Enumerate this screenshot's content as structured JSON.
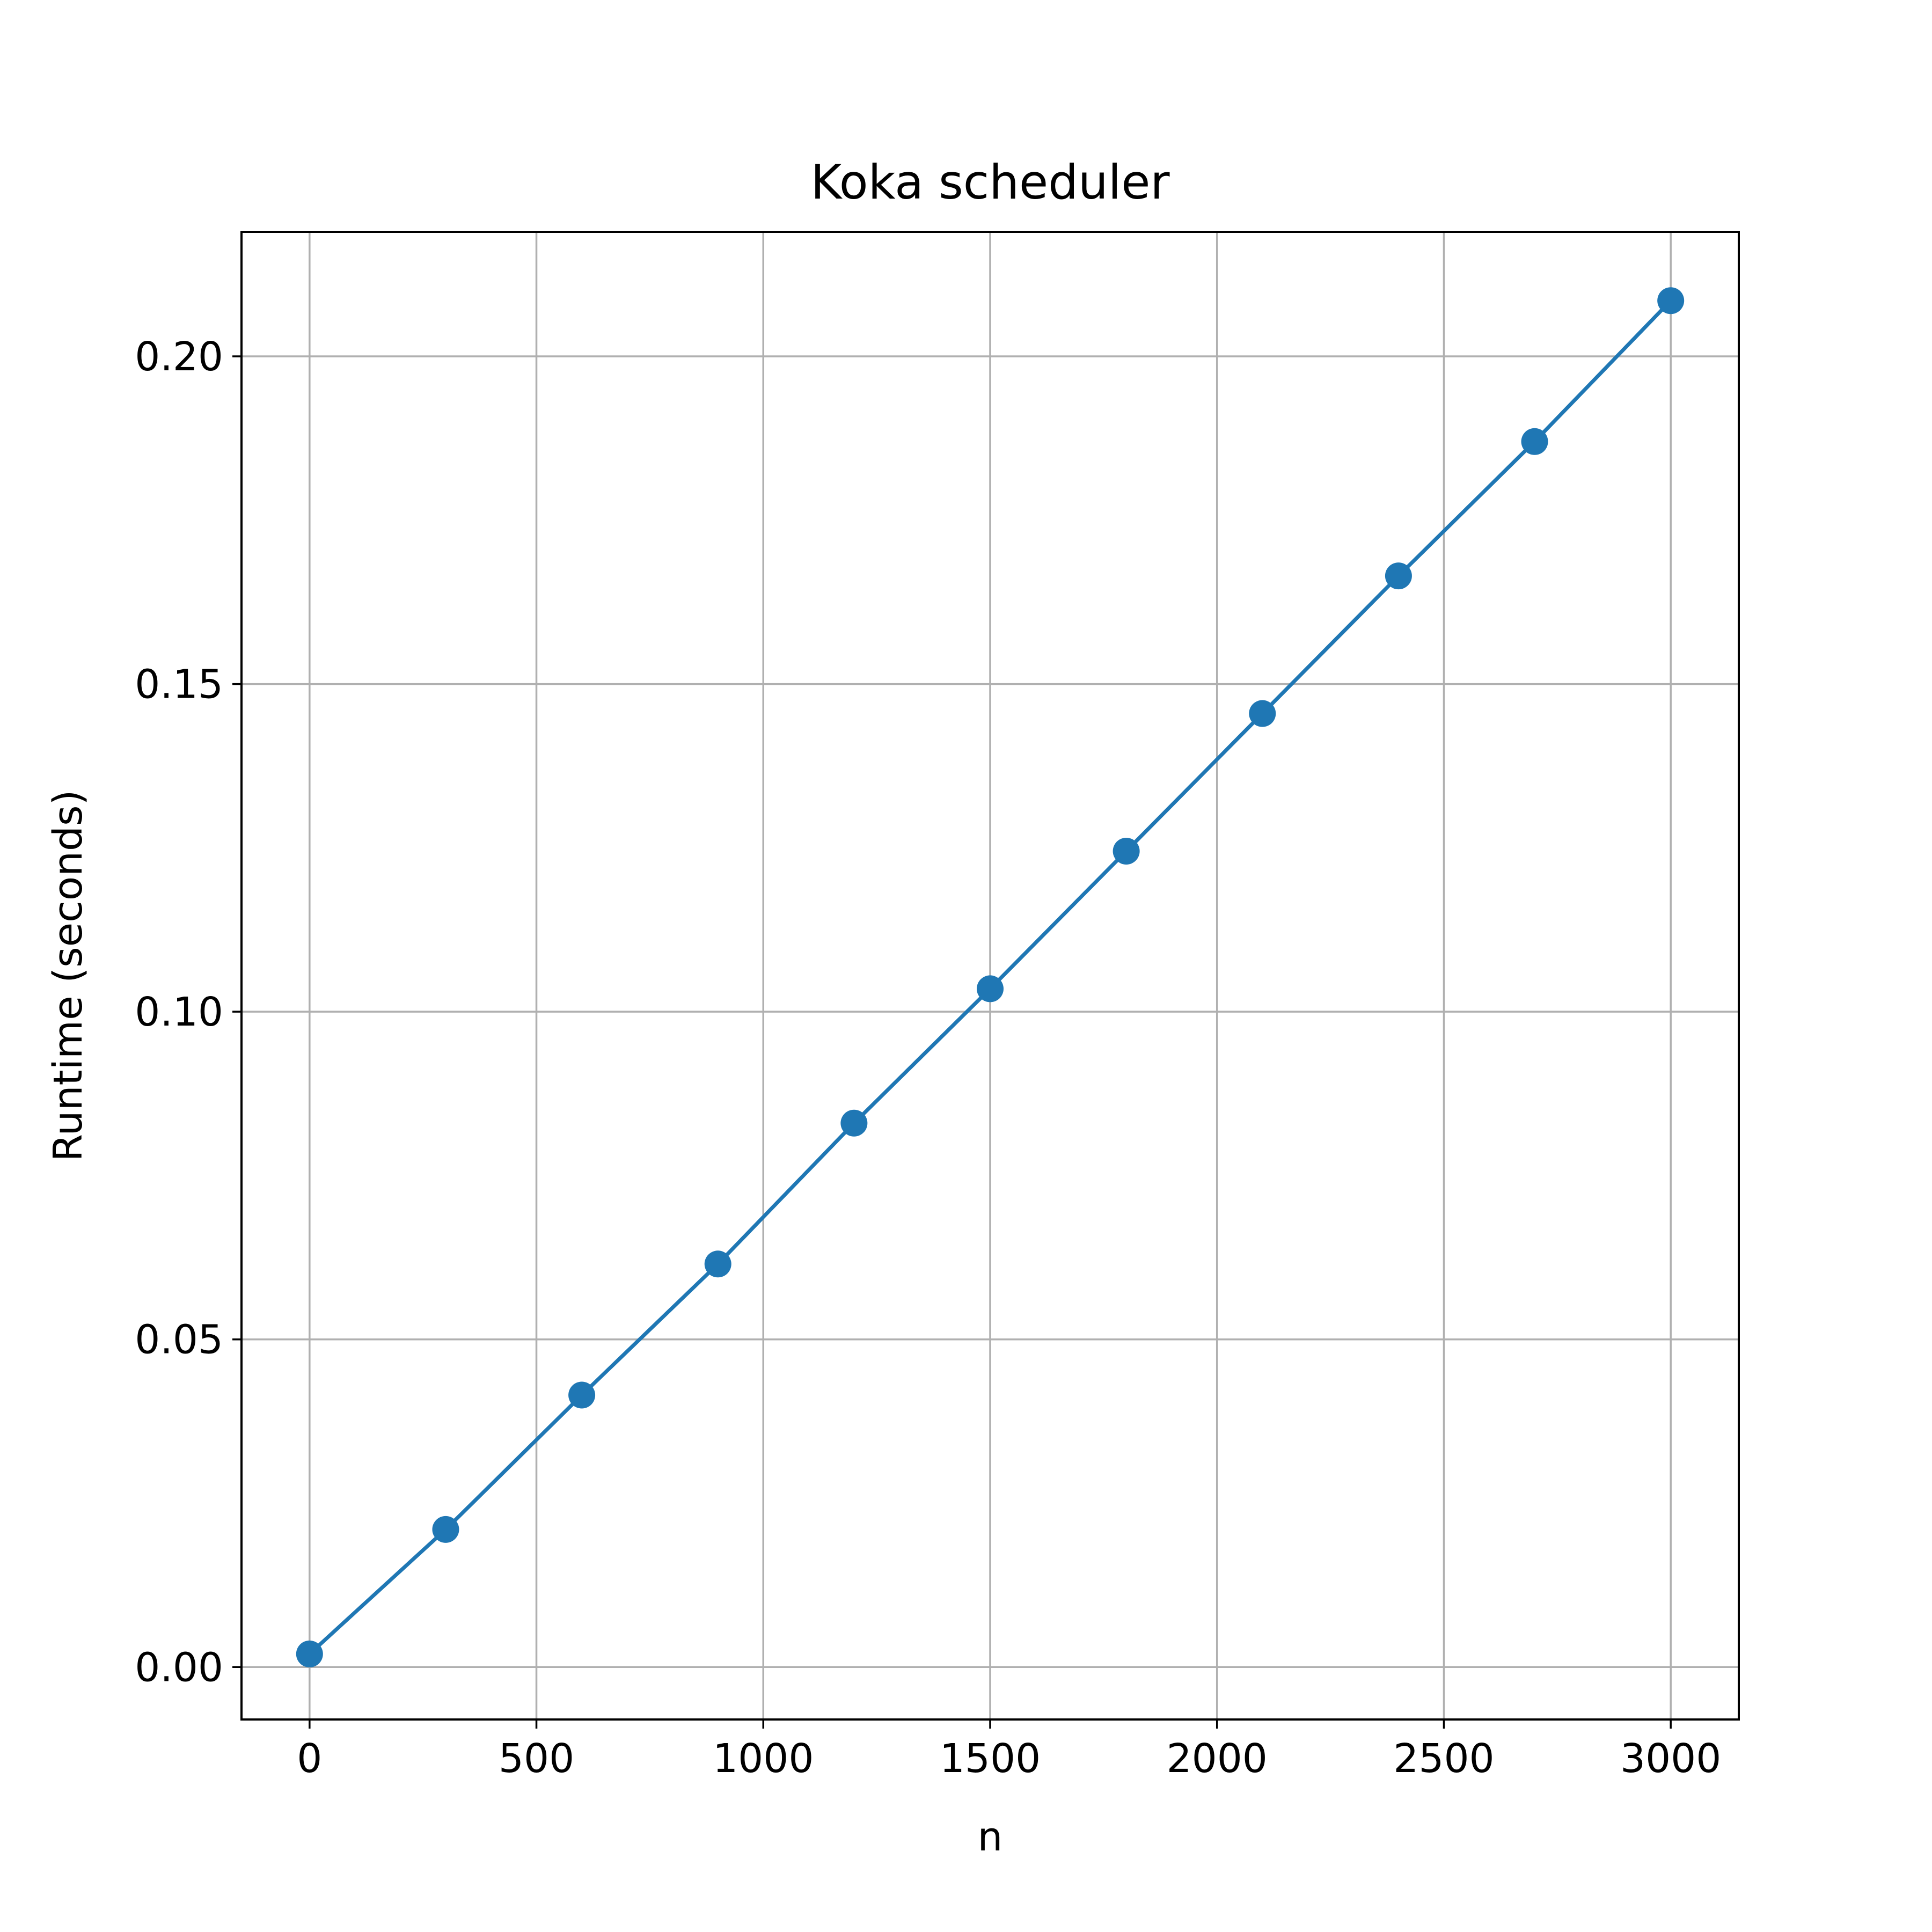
{
  "chart_data": {
    "type": "line",
    "title": "Koka scheduler",
    "xlabel": "n",
    "ylabel": "Runtime (seconds)",
    "xlim": [
      -150,
      3150
    ],
    "ylim": [
      -0.008,
      0.219
    ],
    "xticks": [
      0,
      500,
      1000,
      1500,
      2000,
      2500,
      3000
    ],
    "xtick_labels": [
      "0",
      "500",
      "1000",
      "1500",
      "2000",
      "2500",
      "3000"
    ],
    "yticks": [
      0.0,
      0.05,
      0.1,
      0.15,
      0.2
    ],
    "ytick_labels": [
      "0.00",
      "0.05",
      "0.10",
      "0.15",
      "0.20"
    ],
    "grid": true,
    "legend": "none",
    "series": [
      {
        "color": "#1f77b4",
        "marker": "circle",
        "x": [
          0,
          300,
          600,
          900,
          1200,
          1500,
          1800,
          2100,
          2400,
          2700,
          3000
        ],
        "y": [
          0.002,
          0.021,
          0.0415,
          0.0615,
          0.083,
          0.1035,
          0.1245,
          0.1455,
          0.1665,
          0.187,
          0.2085
        ]
      }
    ]
  }
}
